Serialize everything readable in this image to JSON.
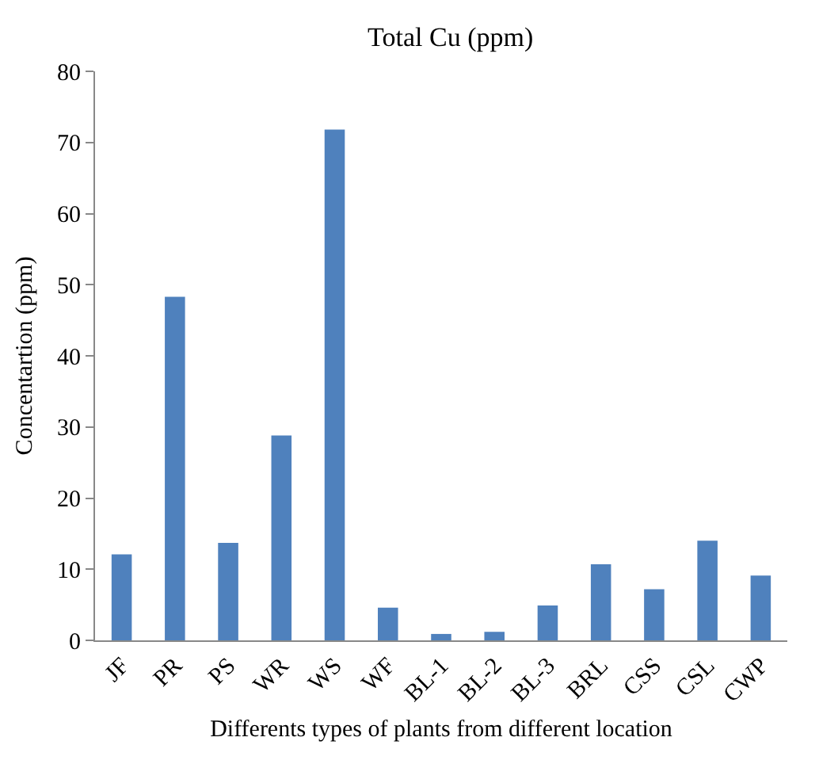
{
  "chart_data": {
    "type": "bar",
    "title": "Total Cu (ppm)",
    "xlabel": "Differents types of plants from different location",
    "ylabel": "Concentartion (ppm)",
    "categories": [
      "JF",
      "PR",
      "PS",
      "WR",
      "WS",
      "WF",
      "BL-1",
      "BL-2",
      "BL-3",
      "BRL",
      "CSS",
      "CSL",
      "CWP"
    ],
    "values": [
      12.1,
      48.3,
      13.7,
      28.8,
      71.8,
      4.6,
      0.9,
      1.2,
      4.9,
      10.7,
      7.2,
      14,
      9.1
    ],
    "color": "#4f81bd",
    "ylim": [
      0,
      80
    ],
    "yticks": [
      0,
      10,
      20,
      30,
      40,
      50,
      60,
      70,
      80
    ],
    "grid": false,
    "legend": false
  }
}
